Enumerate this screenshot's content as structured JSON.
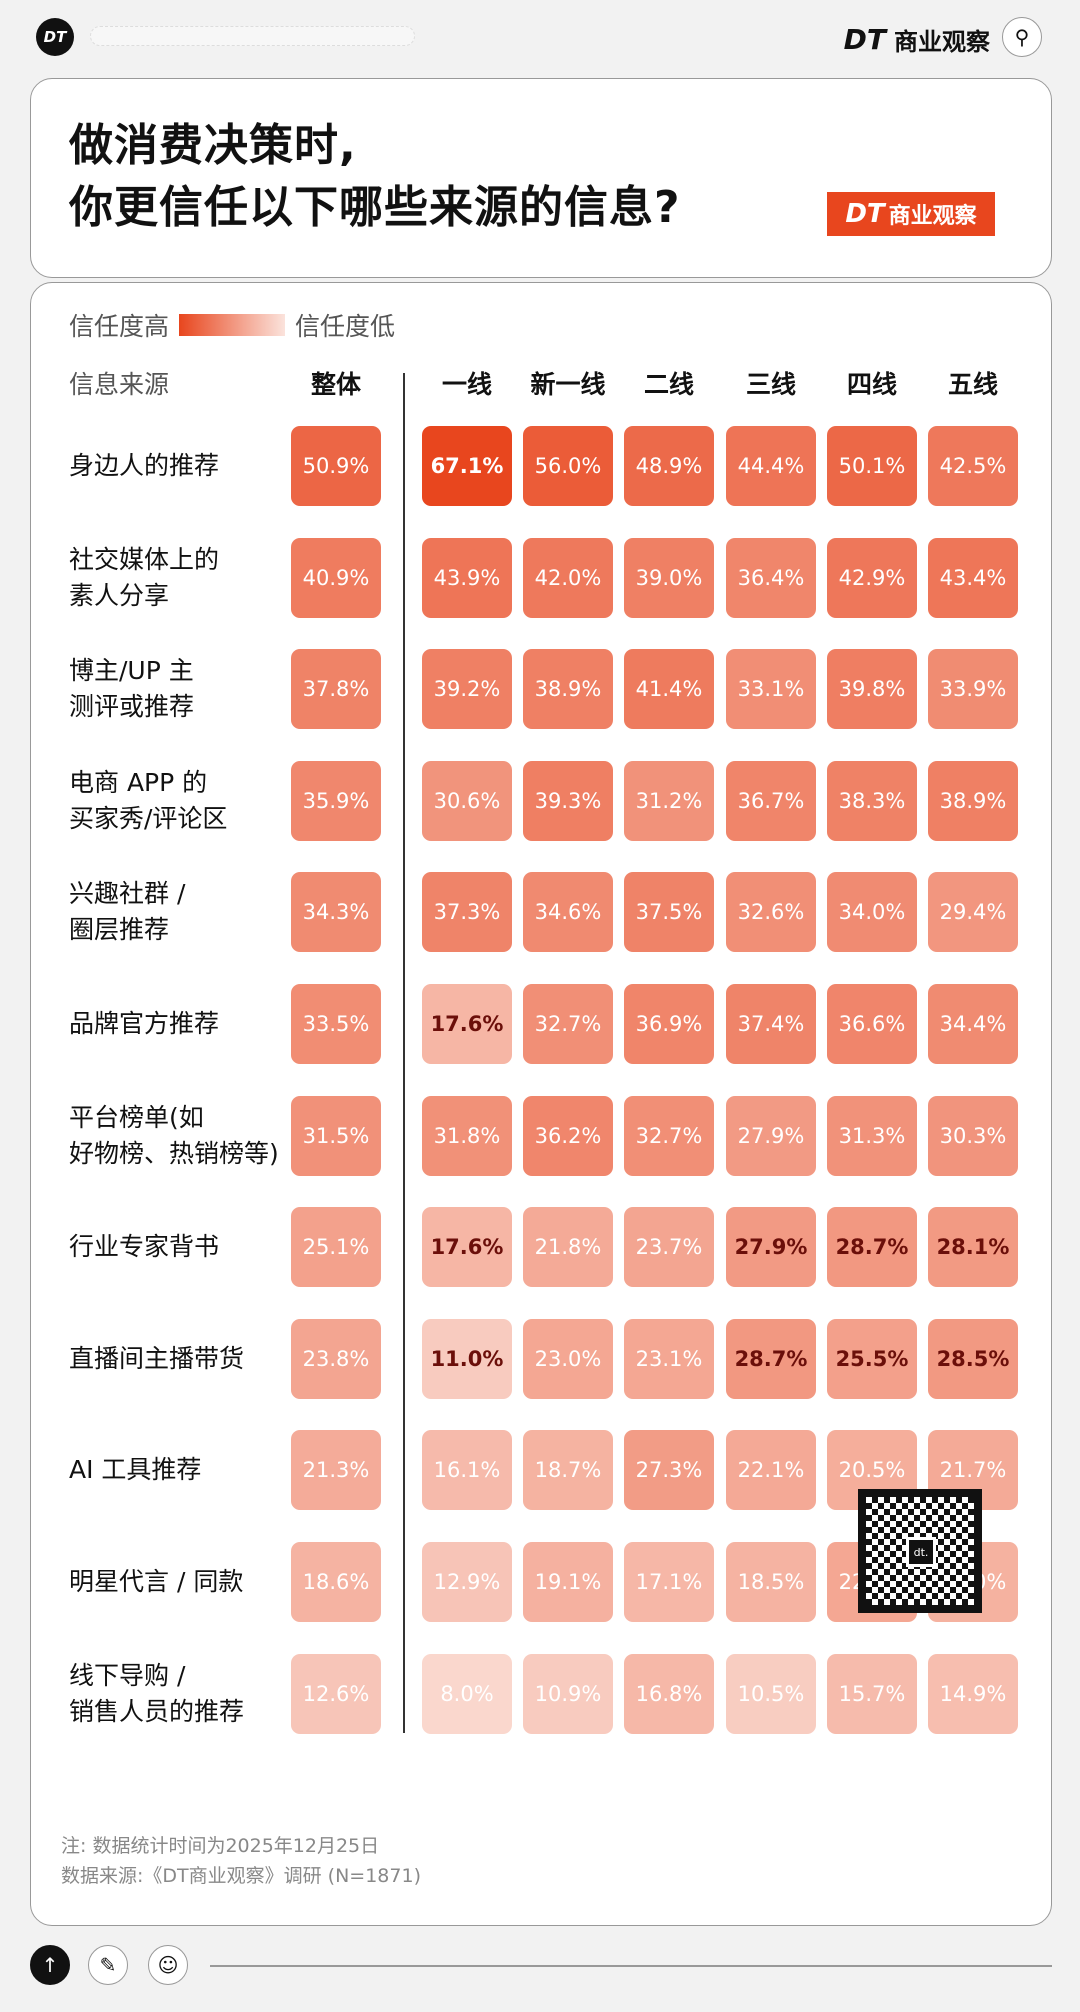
{
  "topbar": {
    "logo": "DT",
    "brand_dt": "DT",
    "brand_name": "商业观察",
    "search_icon": "search-icon"
  },
  "title": {
    "line1": "做消费决策时,",
    "line2": "你更信任以下哪些来源的信息?",
    "badge_dt": "DT",
    "badge_name": "商业观察"
  },
  "colors": {
    "high": "#e8461e",
    "low": "#fbe3dc",
    "emphasis_text": "#6b0f0a"
  },
  "chart_data": {
    "type": "heatmap",
    "legend": {
      "high_label": "信任度高",
      "low_label": "信任度低"
    },
    "row_header": "信息来源",
    "columns": [
      "整体",
      "一线",
      "新一线",
      "二线",
      "三线",
      "四线",
      "五线"
    ],
    "rows": [
      {
        "label": "身边人的推荐",
        "values": [
          "50.9%",
          "67.1%",
          "56.0%",
          "48.9%",
          "44.4%",
          "50.1%",
          "42.5%"
        ],
        "emphasis": [
          1
        ]
      },
      {
        "label": "社交媒体上的\n素人分享",
        "values": [
          "40.9%",
          "43.9%",
          "42.0%",
          "39.0%",
          "36.4%",
          "42.9%",
          "43.4%"
        ],
        "emphasis": []
      },
      {
        "label": "博主/UP 主\n测评或推荐",
        "values": [
          "37.8%",
          "39.2%",
          "38.9%",
          "41.4%",
          "33.1%",
          "39.8%",
          "33.9%"
        ],
        "emphasis": []
      },
      {
        "label": "电商 APP 的\n买家秀/评论区",
        "values": [
          "35.9%",
          "30.6%",
          "39.3%",
          "31.2%",
          "36.7%",
          "38.3%",
          "38.9%"
        ],
        "emphasis": []
      },
      {
        "label": "兴趣社群 /\n圈层推荐",
        "values": [
          "34.3%",
          "37.3%",
          "34.6%",
          "37.5%",
          "32.6%",
          "34.0%",
          "29.4%"
        ],
        "emphasis": []
      },
      {
        "label": "品牌官方推荐",
        "values": [
          "33.5%",
          "17.6%",
          "32.7%",
          "36.9%",
          "37.4%",
          "36.6%",
          "34.4%"
        ],
        "emphasis": [
          1
        ]
      },
      {
        "label": "平台榜单(如\n好物榜、热销榜等)",
        "values": [
          "31.5%",
          "31.8%",
          "36.2%",
          "32.7%",
          "27.9%",
          "31.3%",
          "30.3%"
        ],
        "emphasis": []
      },
      {
        "label": "行业专家背书",
        "values": [
          "25.1%",
          "17.6%",
          "21.8%",
          "23.7%",
          "27.9%",
          "28.7%",
          "28.1%"
        ],
        "emphasis": [
          1,
          4,
          5,
          6
        ]
      },
      {
        "label": "直播间主播带货",
        "values": [
          "23.8%",
          "11.0%",
          "23.0%",
          "23.1%",
          "28.7%",
          "25.5%",
          "28.5%"
        ],
        "emphasis": [
          1,
          4,
          5,
          6
        ]
      },
      {
        "label": "AI 工具推荐",
        "values": [
          "21.3%",
          "16.1%",
          "18.7%",
          "27.3%",
          "22.1%",
          "20.5%",
          "21.7%"
        ],
        "emphasis": []
      },
      {
        "label": "明星代言 / 同款",
        "values": [
          "18.6%",
          "12.9%",
          "19.1%",
          "17.1%",
          "18.5%",
          "22.9%",
          "19.0%"
        ],
        "emphasis": []
      },
      {
        "label": "线下导购 /\n销售人员的推荐",
        "values": [
          "12.6%",
          "8.0%",
          "10.9%",
          "16.8%",
          "10.5%",
          "15.7%",
          "14.9%"
        ],
        "emphasis": []
      }
    ]
  },
  "footer": {
    "note": "注: 数据统计时间为2025年12月25日",
    "source": "数据来源:《DT商业观察》调研 (N=1871)",
    "qr_center": "dt."
  }
}
